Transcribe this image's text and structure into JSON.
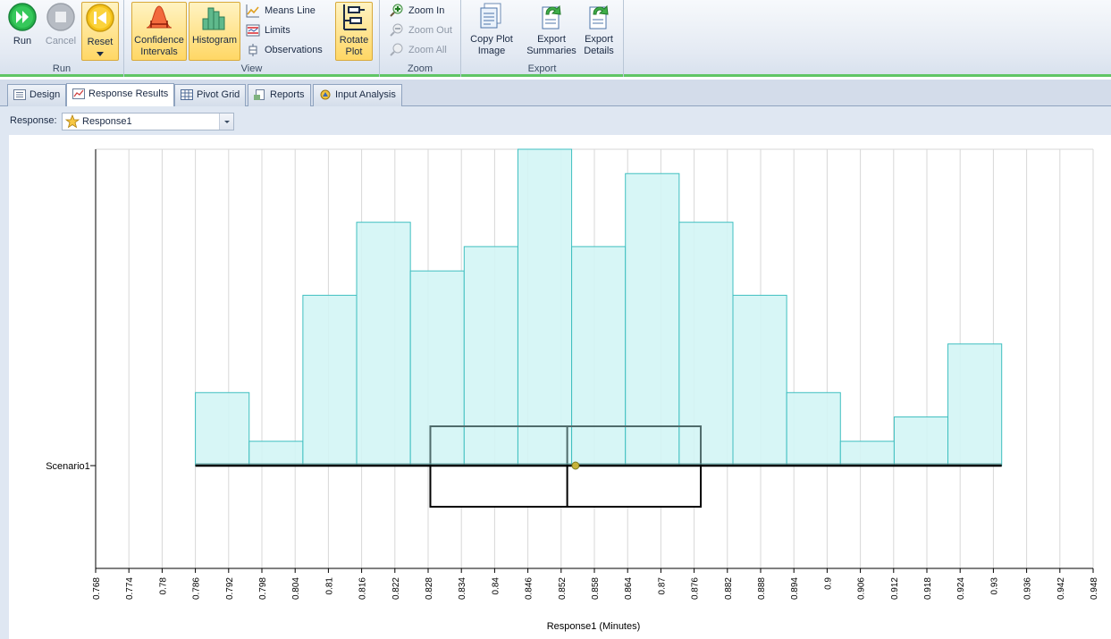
{
  "ribbon": {
    "groups": {
      "run": "Run",
      "view": "View",
      "zoom": "Zoom",
      "export": "Export"
    },
    "run": {
      "run": "Run",
      "cancel": "Cancel",
      "reset": "Reset"
    },
    "view": {
      "confidence_1": "Confidence",
      "confidence_2": "Intervals",
      "histogram": "Histogram",
      "means_line": "Means Line",
      "limits": "Limits",
      "observations": "Observations",
      "rotate_1": "Rotate",
      "rotate_2": "Plot"
    },
    "zoom": {
      "zoom_in": "Zoom In",
      "zoom_out": "Zoom Out",
      "zoom_all": "Zoom All"
    },
    "export": {
      "copy_1": "Copy Plot",
      "copy_2": "Image",
      "summaries_1": "Export",
      "summaries_2": "Summaries",
      "details_1": "Export",
      "details_2": "Details"
    }
  },
  "tabs": [
    "Design",
    "Response Results",
    "Pivot Grid",
    "Reports",
    "Input Analysis"
  ],
  "response": {
    "label": "Response:",
    "value": "Response1"
  },
  "colors": {
    "accent_green": "#5fc565",
    "histogram_fill": "#d3f5f5",
    "histogram_stroke": "#3fbfc0"
  },
  "chart_data": {
    "type": "bar",
    "xlabel": "Response1 (Minutes)",
    "ylabel": "",
    "xlim": [
      0.768,
      0.948
    ],
    "x_ticks": [
      "0.768",
      "0.774",
      "0.78",
      "0.786",
      "0.792",
      "0.798",
      "0.804",
      "0.81",
      "0.816",
      "0.822",
      "0.828",
      "0.834",
      "0.84",
      "0.846",
      "0.852",
      "0.858",
      "0.864",
      "0.87",
      "0.876",
      "0.882",
      "0.888",
      "0.894",
      "0.9",
      "0.906",
      "0.912",
      "0.918",
      "0.924",
      "0.93",
      "0.936",
      "0.942",
      "0.948"
    ],
    "grid": true,
    "category": "Scenario1",
    "histogram": {
      "bin_edges": [
        0.786,
        0.7957,
        0.8054,
        0.8151,
        0.8248,
        0.8345,
        0.8442,
        0.8539,
        0.8636,
        0.8733,
        0.883,
        0.8927,
        0.9024,
        0.9121,
        0.9218,
        0.9315
      ],
      "counts": [
        3,
        1,
        7,
        10,
        8,
        9,
        13,
        9,
        12,
        10,
        7,
        3,
        1,
        2,
        5
      ]
    },
    "box": {
      "min": 0.786,
      "q1": 0.8284,
      "median": 0.8531,
      "q3": 0.8772,
      "max": 0.9315,
      "mean": 0.8546
    }
  }
}
